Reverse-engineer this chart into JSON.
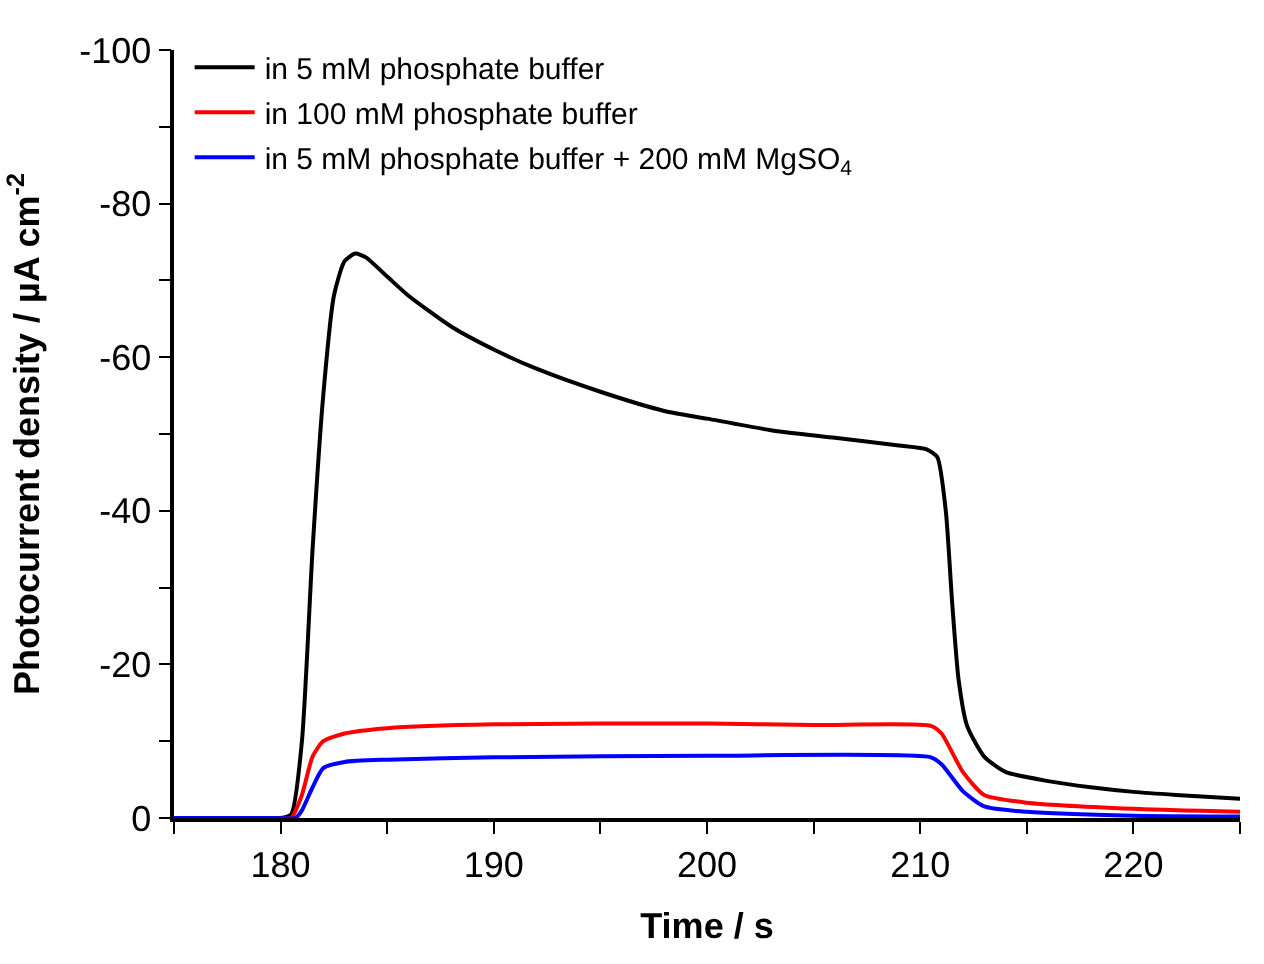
{
  "chart_data": {
    "type": "line",
    "xlabel": "Time / s",
    "ylabel": "Photocurrent density / µA cm$^{-2}$",
    "xlim": [
      175,
      225
    ],
    "ylim": [
      0,
      -100
    ],
    "xticks": [
      {
        "value": 175,
        "label": null
      },
      180,
      {
        "value": 185,
        "label": null
      },
      190,
      {
        "value": 195,
        "label": null
      },
      200,
      {
        "value": 205,
        "label": null
      },
      210,
      {
        "value": 215,
        "label": null
      },
      220,
      {
        "value": 225,
        "label": null
      }
    ],
    "yticks": [
      0,
      {
        "value": -10,
        "label": null
      },
      -20,
      {
        "value": -30,
        "label": null
      },
      -40,
      {
        "value": -50,
        "label": null
      },
      -60,
      {
        "value": -70,
        "label": null
      },
      -80,
      {
        "value": -90,
        "label": null
      },
      -100
    ],
    "grid": false,
    "legend": "top left",
    "marker": "none",
    "line_style": "solid",
    "series": [
      {
        "name": "in 5 mM phosphate buffer",
        "color": "#000000",
        "x": [
          175,
          180,
          180.5,
          181,
          181.5,
          182,
          182.5,
          183,
          183.5,
          184,
          185,
          186,
          188,
          190,
          192,
          195,
          198,
          200,
          203,
          206,
          209,
          210.3,
          210.8,
          211.2,
          211.5,
          211.8,
          212.2,
          213,
          214,
          216,
          218,
          220,
          222,
          225
        ],
        "values": [
          0,
          0,
          -0.5,
          -10,
          -35,
          -55,
          -68,
          -72.5,
          -73.5,
          -73,
          -70.5,
          -68,
          -64,
          -61,
          -58.5,
          -55.5,
          -53,
          -52,
          -50.5,
          -49.5,
          -48.5,
          -48,
          -47,
          -40,
          -28,
          -18,
          -12,
          -8,
          -6,
          -4.8,
          -4,
          -3.4,
          -3,
          -2.5
        ]
      },
      {
        "name": "in 100 mM phosphate buffer",
        "color": "#ff0000",
        "x": [
          175,
          180,
          180.5,
          181,
          181.5,
          182,
          183,
          185,
          190,
          200,
          205,
          210.5,
          211,
          212,
          213,
          215,
          220,
          225
        ],
        "values": [
          0,
          0,
          0,
          -3,
          -8,
          -10,
          -11,
          -11.7,
          -12.2,
          -12.3,
          -12.1,
          -12,
          -11,
          -6,
          -3,
          -2,
          -1.2,
          -0.8
        ]
      },
      {
        "name": "in 5 mM phosphate buffer + 200 mM MgSO$_{4}$",
        "color": "#0000ff",
        "x": [
          175,
          180,
          180.7,
          181,
          181.5,
          182,
          183,
          185,
          190,
          200,
          210.5,
          211,
          212,
          213,
          215,
          220,
          225
        ],
        "values": [
          0,
          0,
          0,
          -1,
          -4,
          -6.5,
          -7.3,
          -7.6,
          -7.9,
          -8.1,
          -7.9,
          -7,
          -3.5,
          -1.5,
          -0.8,
          -0.3,
          -0.2
        ]
      }
    ]
  }
}
